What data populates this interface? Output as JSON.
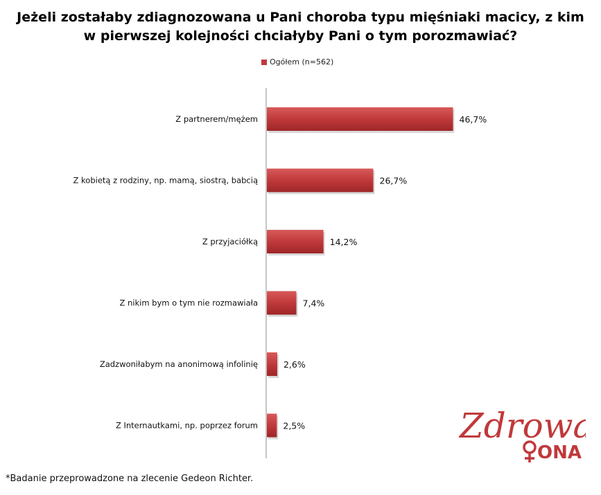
{
  "title_line1": "Jeżeli zostałaby zdiagnozowana u Pani choroba typu mięśniaki macicy, z kim",
  "title_line2": "w pierwszej kolejności chciałyby Pani o tym porozmawiać?",
  "footnote": "*Badanie przeprowadzone na zlecenie Gedeon Richter.",
  "logo": {
    "word": "Zdrowa",
    "word2": "ONA",
    "icon": "female-symbol-icon",
    "color": "#c0393b"
  },
  "chart_data": {
    "type": "bar",
    "orientation": "horizontal",
    "categories": [
      "Z partnerem/mężem",
      "Z kobietą z rodziny, np. mamą, siostrą, babcią",
      "Z przyjaciółką",
      "Z nikim bym o tym nie rozmawiała",
      "Zadzwoniłabym na anonimową infolinię",
      "Z Internautkami, np. poprzez forum"
    ],
    "series": [
      {
        "name": "Ogółem (n=562)",
        "values": [
          46.7,
          26.7,
          14.2,
          7.4,
          2.6,
          2.5
        ],
        "labels": [
          "46,7%",
          "26,7%",
          "14,2%",
          "7,4%",
          "2,6%",
          "2,5%"
        ],
        "color": "#c0393b"
      }
    ],
    "legend_position": "top",
    "grid": false
  }
}
